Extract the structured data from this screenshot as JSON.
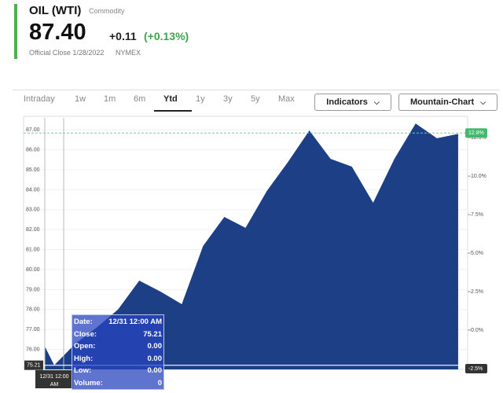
{
  "header": {
    "title": "OIL (WTI)",
    "subtitle": "Commodity",
    "price": "87.40",
    "change": "+0.11",
    "change_pct": "(+0.13%)",
    "close_note": "Official Close 1/28/2022",
    "exchange": "NYMEX"
  },
  "toolbar": {
    "tabs": [
      "Intraday",
      "1w",
      "1m",
      "6m",
      "Ytd",
      "1y",
      "3y",
      "5y",
      "Max"
    ],
    "selected_tab": 4,
    "buttons": [
      "Indicators",
      "Mountain-Chart"
    ]
  },
  "chart_data": {
    "type": "area",
    "color": "#1c3f86",
    "categories": [
      null,
      "12/31 12:00 AM",
      null,
      null,
      null,
      null,
      null,
      null,
      null,
      null,
      null,
      null,
      null,
      null,
      null,
      null,
      null,
      null,
      null,
      null,
      null
    ],
    "values": [
      76.15,
      75.21,
      76.3,
      77.1,
      78.0,
      79.45,
      78.9,
      78.27,
      81.18,
      82.64,
      82.09,
      83.94,
      85.4,
      86.97,
      85.55,
      85.16,
      83.35,
      85.55,
      87.32,
      86.58,
      86.8
    ],
    "ylim": [
      75.0,
      87.6
    ],
    "yticks": [
      {
        "value": 76,
        "label": "76.00"
      },
      {
        "value": 77,
        "label": "77.00"
      },
      {
        "value": 78,
        "label": "78.00"
      },
      {
        "value": 79,
        "label": "79.00"
      },
      {
        "value": 80,
        "label": "80.00"
      },
      {
        "value": 81,
        "label": "81.00"
      },
      {
        "value": 82,
        "label": "82.00"
      },
      {
        "value": 83,
        "label": "83.00"
      },
      {
        "value": 84,
        "label": "84.00"
      },
      {
        "value": 85,
        "label": "85.00"
      },
      {
        "value": 86,
        "label": "86.00"
      },
      {
        "value": 87,
        "label": "87.00"
      }
    ],
    "y2lim": [
      -2.55,
      13.78
    ],
    "y2ticks": [
      {
        "value": 0,
        "label": "0.0%"
      },
      {
        "value": 2.5,
        "label": "2.5%"
      },
      {
        "value": 5,
        "label": "5.0%"
      },
      {
        "value": 7.5,
        "label": "7.5%"
      },
      {
        "value": 10,
        "label": "10.0%"
      },
      {
        "value": 12.5,
        "label": "12.5%"
      }
    ],
    "y2_tags": [
      {
        "value": 12.8,
        "label": "12.8%"
      },
      {
        "value": -2.5,
        "label": "-2.5%"
      }
    ],
    "y_tag": 75.21,
    "grid": true
  },
  "tooltip": {
    "rows": [
      [
        "Date:",
        "12/31 12:00 AM"
      ],
      [
        "Close:",
        "75.21"
      ],
      [
        "Open:",
        "0.00"
      ],
      [
        "High:",
        "0.00"
      ],
      [
        "Low:",
        "0.00"
      ],
      [
        "Volume:",
        "0"
      ]
    ],
    "x_tag": "12/31 12:00 AM"
  }
}
